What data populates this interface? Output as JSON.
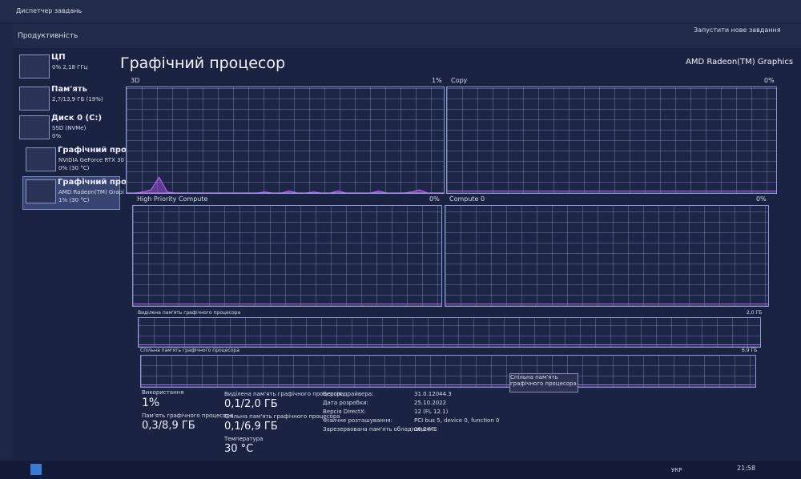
{
  "window": {
    "title": "Диспетчер завдань"
  },
  "header": {
    "title": "Продуктивність",
    "action": "Запустити нове завдання"
  },
  "sidebar": [
    {
      "name": "ЦП",
      "details": [
        "0% 2,18 ГГц"
      ]
    },
    {
      "name": "Пам'ять",
      "details": [
        "2,7/13,9 ГБ (19%)"
      ]
    },
    {
      "name": "Диск 0 (C:)",
      "details": [
        "SSD (NVMe)",
        "0%"
      ]
    },
    {
      "name": "Графічний проце",
      "details": [
        "NVIDIA GeForce RTX 30",
        "0% (30 °C)"
      ]
    },
    {
      "name": "Графічний проце",
      "details": [
        "AMD Radeon(TM) Grapi",
        "1% (30 °C)"
      ]
    }
  ],
  "main": {
    "title": "Графічний процесор",
    "device": "AMD Radeon(TM) Graphics"
  },
  "history_ylim": [
    0,
    100
  ],
  "engines": [
    {
      "name": "3D",
      "value": "1%",
      "history": [
        0,
        0,
        1,
        3,
        15,
        1,
        0,
        0,
        0,
        0,
        0,
        0,
        0,
        0,
        0,
        0,
        0,
        1,
        0,
        0,
        2,
        0,
        0,
        1,
        0,
        0,
        2,
        0,
        0,
        0,
        0,
        2,
        0,
        0,
        0,
        1,
        3,
        0,
        0,
        0
      ]
    },
    {
      "name": "Copy",
      "value": "0%"
    },
    {
      "name": "High Priority Compute",
      "value": "0%"
    },
    {
      "name": "Compute 0",
      "value": "0%"
    }
  ],
  "memory_graphs": [
    {
      "label": "Виділена пам'ять графічного процесора",
      "max": "2,0 ГБ"
    },
    {
      "label": "Спільна пам'ять графічного процесора",
      "max": "6,9 ГБ"
    }
  ],
  "tooltip": "Спільна пам'ять графічного процесора",
  "stats": [
    {
      "label": "Використання",
      "value": "1%"
    },
    {
      "label": "Пам'ять графічного процесора",
      "value": "0,3/8,9 ГБ"
    },
    {
      "label": "Виділена пам'ять графічного процесора",
      "value": "0,1/2,0 ГБ"
    },
    {
      "label": "Спільна пам'ять графічного процесора",
      "value": "0,1/6,9 ГБ"
    },
    {
      "label": "Температура",
      "value": "30 °C"
    }
  ],
  "details": [
    {
      "label": "Версія драйвера:",
      "value": "31.0.12044.3"
    },
    {
      "label": "Дата розробки:",
      "value": "25.10.2022"
    },
    {
      "label": "Версія DirectX:",
      "value": "12 (FL 12.1)"
    },
    {
      "label": "Фізичне розташування:",
      "value": "PCI bus 5, device 0, function 0"
    },
    {
      "label": "Зарезервована пам'ять обладнання:",
      "value": "16,2 МБ"
    }
  ],
  "taskbar": {
    "language": "УКР",
    "time": "21:58"
  }
}
